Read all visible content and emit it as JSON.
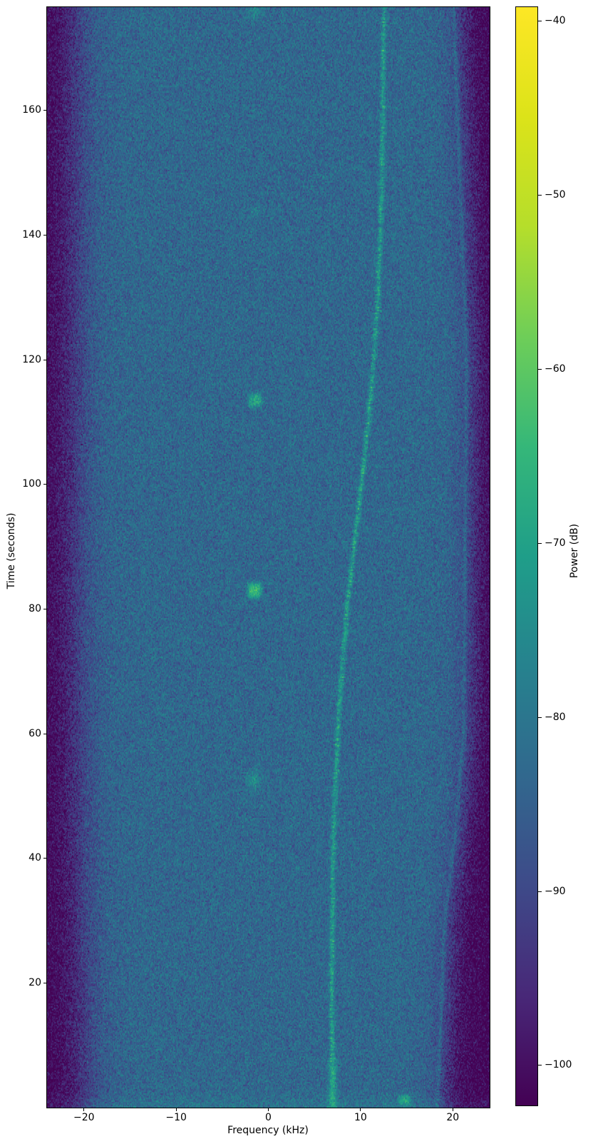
{
  "chart_data": {
    "type": "heatmap",
    "title": "",
    "xlabel": "Frequency (kHz)",
    "ylabel": "Time (seconds)",
    "colorbar_label": "Power (dB)",
    "xlim": [
      -24,
      24
    ],
    "ylim": [
      0,
      176.6
    ],
    "xticks": [
      -20,
      -10,
      0,
      10,
      20
    ],
    "yticks": [
      20,
      40,
      60,
      80,
      100,
      120,
      140,
      160
    ],
    "colorbar": {
      "vmin": -102.3,
      "vmax": -39.2,
      "ticks": [
        -40,
        -50,
        -60,
        -70,
        -80,
        -90,
        -100
      ]
    },
    "colormap": "viridis",
    "viridis_stops": [
      "#440154",
      "#482878",
      "#3e4a89",
      "#31688e",
      "#26828e",
      "#1f9e89",
      "#35b779",
      "#6ece58",
      "#b5de2b",
      "#dce319",
      "#fde725"
    ],
    "legend": "none",
    "grid": false,
    "noise_floor_db": -83.2,
    "noise_sigma_db": 4.1,
    "edge_floor_drop_db": 19.5,
    "band_edge_left_khz": [
      [
        0,
        -19.9
      ],
      [
        40,
        -20.6
      ],
      [
        90,
        -21.1
      ],
      [
        177,
        -21.0
      ]
    ],
    "band_edge_right_khz": [
      [
        0,
        19.1
      ],
      [
        31,
        20.0
      ],
      [
        44,
        21.1
      ],
      [
        60,
        22.0
      ],
      [
        120,
        22.3
      ],
      [
        177,
        20.9
      ]
    ],
    "edge_rim": {
      "offset_khz": -0.8,
      "amp_db": 5,
      "sigma_khz": 0.22
    },
    "edge_width_left_khz": 1.3,
    "edge_width_right_khz": 0.9,
    "startup_boost": {
      "t_max_s": 2.5,
      "amp_db": 3
    },
    "tone_trace": {
      "amp_db": 11,
      "sigma_khz": 0.27,
      "tip_amp_db": 13,
      "tip_sigma_khz": 0.45,
      "tip_t_max_s": 8,
      "points_t_s_f_khz": [
        [
          0,
          7.0
        ],
        [
          20,
          6.9
        ],
        [
          35,
          6.95
        ],
        [
          50,
          7.24
        ],
        [
          60,
          7.53
        ],
        [
          70,
          7.96
        ],
        [
          80,
          8.54
        ],
        [
          90,
          9.3
        ],
        [
          100,
          10.1
        ],
        [
          110,
          10.85
        ],
        [
          120,
          11.44
        ],
        [
          130,
          11.87
        ],
        [
          140,
          12.16
        ],
        [
          150,
          12.33
        ],
        [
          160,
          12.44
        ],
        [
          170,
          12.51
        ],
        [
          176.6,
          12.55
        ]
      ]
    },
    "pulses": [
      {
        "t_s": 52.5,
        "f_khz": -1.55,
        "dur_s": 2.8,
        "bw_khz": 1.5,
        "amp_db": 9,
        "shape": "soft"
      },
      {
        "t_s": 83.0,
        "f_khz": -1.5,
        "dur_s": 2.6,
        "bw_khz": 1.6,
        "amp_db": 18,
        "shape": "square"
      },
      {
        "t_s": 113.5,
        "f_khz": -1.45,
        "dur_s": 2.2,
        "bw_khz": 1.5,
        "amp_db": 14,
        "shape": "square"
      },
      {
        "t_s": 144.0,
        "f_khz": -1.5,
        "dur_s": 2.0,
        "bw_khz": 1.3,
        "amp_db": 4,
        "shape": "soft"
      },
      {
        "t_s": 176.0,
        "f_khz": -1.5,
        "dur_s": 2.5,
        "bw_khz": 1.8,
        "amp_db": 6,
        "shape": "soft"
      },
      {
        "t_s": 1.2,
        "f_khz": 14.75,
        "dur_s": 1.8,
        "bw_khz": 1.35,
        "amp_db": 12,
        "shape": "square"
      }
    ]
  }
}
